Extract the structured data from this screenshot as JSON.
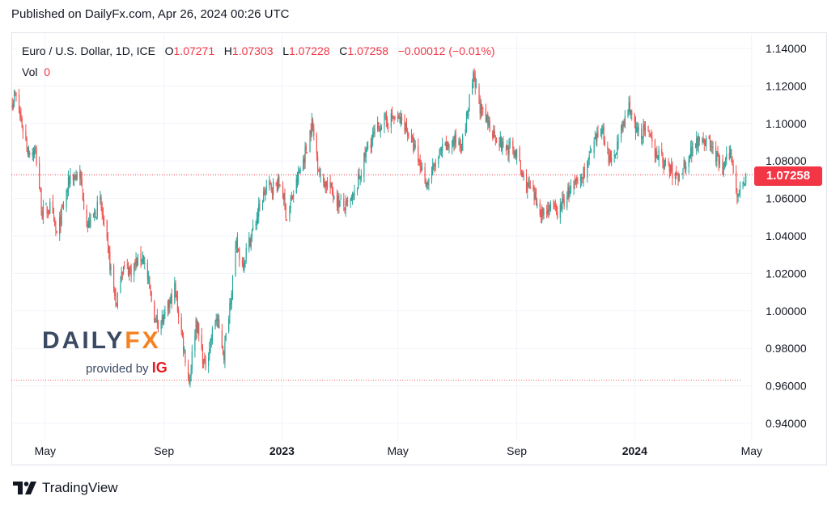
{
  "header": {
    "published": "Published on DailyFx.com, Apr 26, 2024 00:26 UTC"
  },
  "legend": {
    "symbol": "Euro / U.S. Dollar, 1D, ICE",
    "o_label": "O",
    "o_value": "1.07271",
    "h_label": "H",
    "h_value": "1.07303",
    "l_label": "L",
    "l_value": "1.07228",
    "c_label": "C",
    "c_value": "1.07258",
    "change": "−0.00012 (−0.01%)",
    "vol_label": "Vol",
    "vol_value": "0"
  },
  "current_price": "1.07258",
  "logo": {
    "brand_a": "DAILY",
    "brand_b": "FX",
    "provided_by": "provided by",
    "ig": "IG"
  },
  "footer": {
    "tradingview": "TradingView"
  },
  "colors": {
    "up": "#26a69a",
    "down": "#ef5350",
    "price_line": "#f23645",
    "grid": "#f0f3fa"
  },
  "chart_data": {
    "type": "candlestick",
    "title": "",
    "ylim": [
      0.94,
      1.14
    ],
    "y_ticks": [
      "0.94000",
      "0.96000",
      "0.98000",
      "1.00000",
      "1.02000",
      "1.04000",
      "1.06000",
      "1.08000",
      "1.10000",
      "1.12000",
      "1.14000"
    ],
    "x_ticks": [
      "May",
      "Sep",
      "2023",
      "May",
      "Sep",
      "2024",
      "May"
    ],
    "x_tick_dates": [
      "2022-05-01",
      "2022-09-01",
      "2023-01-01",
      "2023-05-01",
      "2023-09-01",
      "2024-01-01",
      "2024-05-01"
    ],
    "x_start": "2022-03-27",
    "x_end": "2024-05-02",
    "last_close": 1.07258,
    "reference_line": 0.963,
    "path": [
      [
        "2022-03-28",
        1.112
      ],
      [
        "2022-03-31",
        1.115
      ],
      [
        "2022-04-13",
        1.086
      ],
      [
        "2022-04-21",
        1.085
      ],
      [
        "2022-04-28",
        1.052
      ],
      [
        "2022-05-06",
        1.055
      ],
      [
        "2022-05-13",
        1.04
      ],
      [
        "2022-05-27",
        1.072
      ],
      [
        "2022-06-06",
        1.072
      ],
      [
        "2022-06-14",
        1.045
      ],
      [
        "2022-06-27",
        1.058
      ],
      [
        "2022-07-14",
        1.002
      ],
      [
        "2022-07-19",
        1.023
      ],
      [
        "2022-07-29",
        1.022
      ],
      [
        "2022-08-10",
        1.03
      ],
      [
        "2022-08-23",
        0.995
      ],
      [
        "2022-09-01",
        0.995
      ],
      [
        "2022-09-12",
        1.012
      ],
      [
        "2022-09-27",
        0.962
      ],
      [
        "2022-10-04",
        0.995
      ],
      [
        "2022-10-13",
        0.97
      ],
      [
        "2022-10-25",
        0.997
      ],
      [
        "2022-11-02",
        0.977
      ],
      [
        "2022-11-15",
        1.035
      ],
      [
        "2022-11-21",
        1.025
      ],
      [
        "2022-12-06",
        1.05
      ],
      [
        "2022-12-15",
        1.065
      ],
      [
        "2022-12-31",
        1.068
      ],
      [
        "2023-01-06",
        1.05
      ],
      [
        "2023-01-27",
        1.088
      ],
      [
        "2023-02-01",
        1.1
      ],
      [
        "2023-02-10",
        1.07
      ],
      [
        "2023-02-17",
        1.068
      ],
      [
        "2023-03-01",
        1.058
      ],
      [
        "2023-03-08",
        1.055
      ],
      [
        "2023-03-16",
        1.06
      ],
      [
        "2023-03-31",
        1.088
      ],
      [
        "2023-04-13",
        1.1
      ],
      [
        "2023-04-26",
        1.103
      ],
      [
        "2023-05-08",
        1.1
      ],
      [
        "2023-05-31",
        1.068
      ],
      [
        "2023-06-15",
        1.085
      ],
      [
        "2023-06-30",
        1.091
      ],
      [
        "2023-07-07",
        1.09
      ],
      [
        "2023-07-18",
        1.124
      ],
      [
        "2023-07-27",
        1.105
      ],
      [
        "2023-08-17",
        1.088
      ],
      [
        "2023-08-31",
        1.085
      ],
      [
        "2023-09-07",
        1.071
      ],
      [
        "2023-09-14",
        1.065
      ],
      [
        "2023-09-28",
        1.052
      ],
      [
        "2023-10-05",
        1.056
      ],
      [
        "2023-10-13",
        1.052
      ],
      [
        "2023-10-24",
        1.063
      ],
      [
        "2023-11-06",
        1.07
      ],
      [
        "2023-11-28",
        1.098
      ],
      [
        "2023-12-07",
        1.078
      ],
      [
        "2023-12-27",
        1.11
      ],
      [
        "2024-01-02",
        1.095
      ],
      [
        "2024-01-12",
        1.096
      ],
      [
        "2024-01-23",
        1.085
      ],
      [
        "2024-02-05",
        1.076
      ],
      [
        "2024-02-14",
        1.071
      ],
      [
        "2024-03-08",
        1.094
      ],
      [
        "2024-03-20",
        1.088
      ],
      [
        "2024-04-01",
        1.075
      ],
      [
        "2024-04-09",
        1.085
      ],
      [
        "2024-04-16",
        1.063
      ],
      [
        "2024-04-24",
        1.071
      ],
      [
        "2024-04-25",
        1.0726
      ]
    ]
  }
}
